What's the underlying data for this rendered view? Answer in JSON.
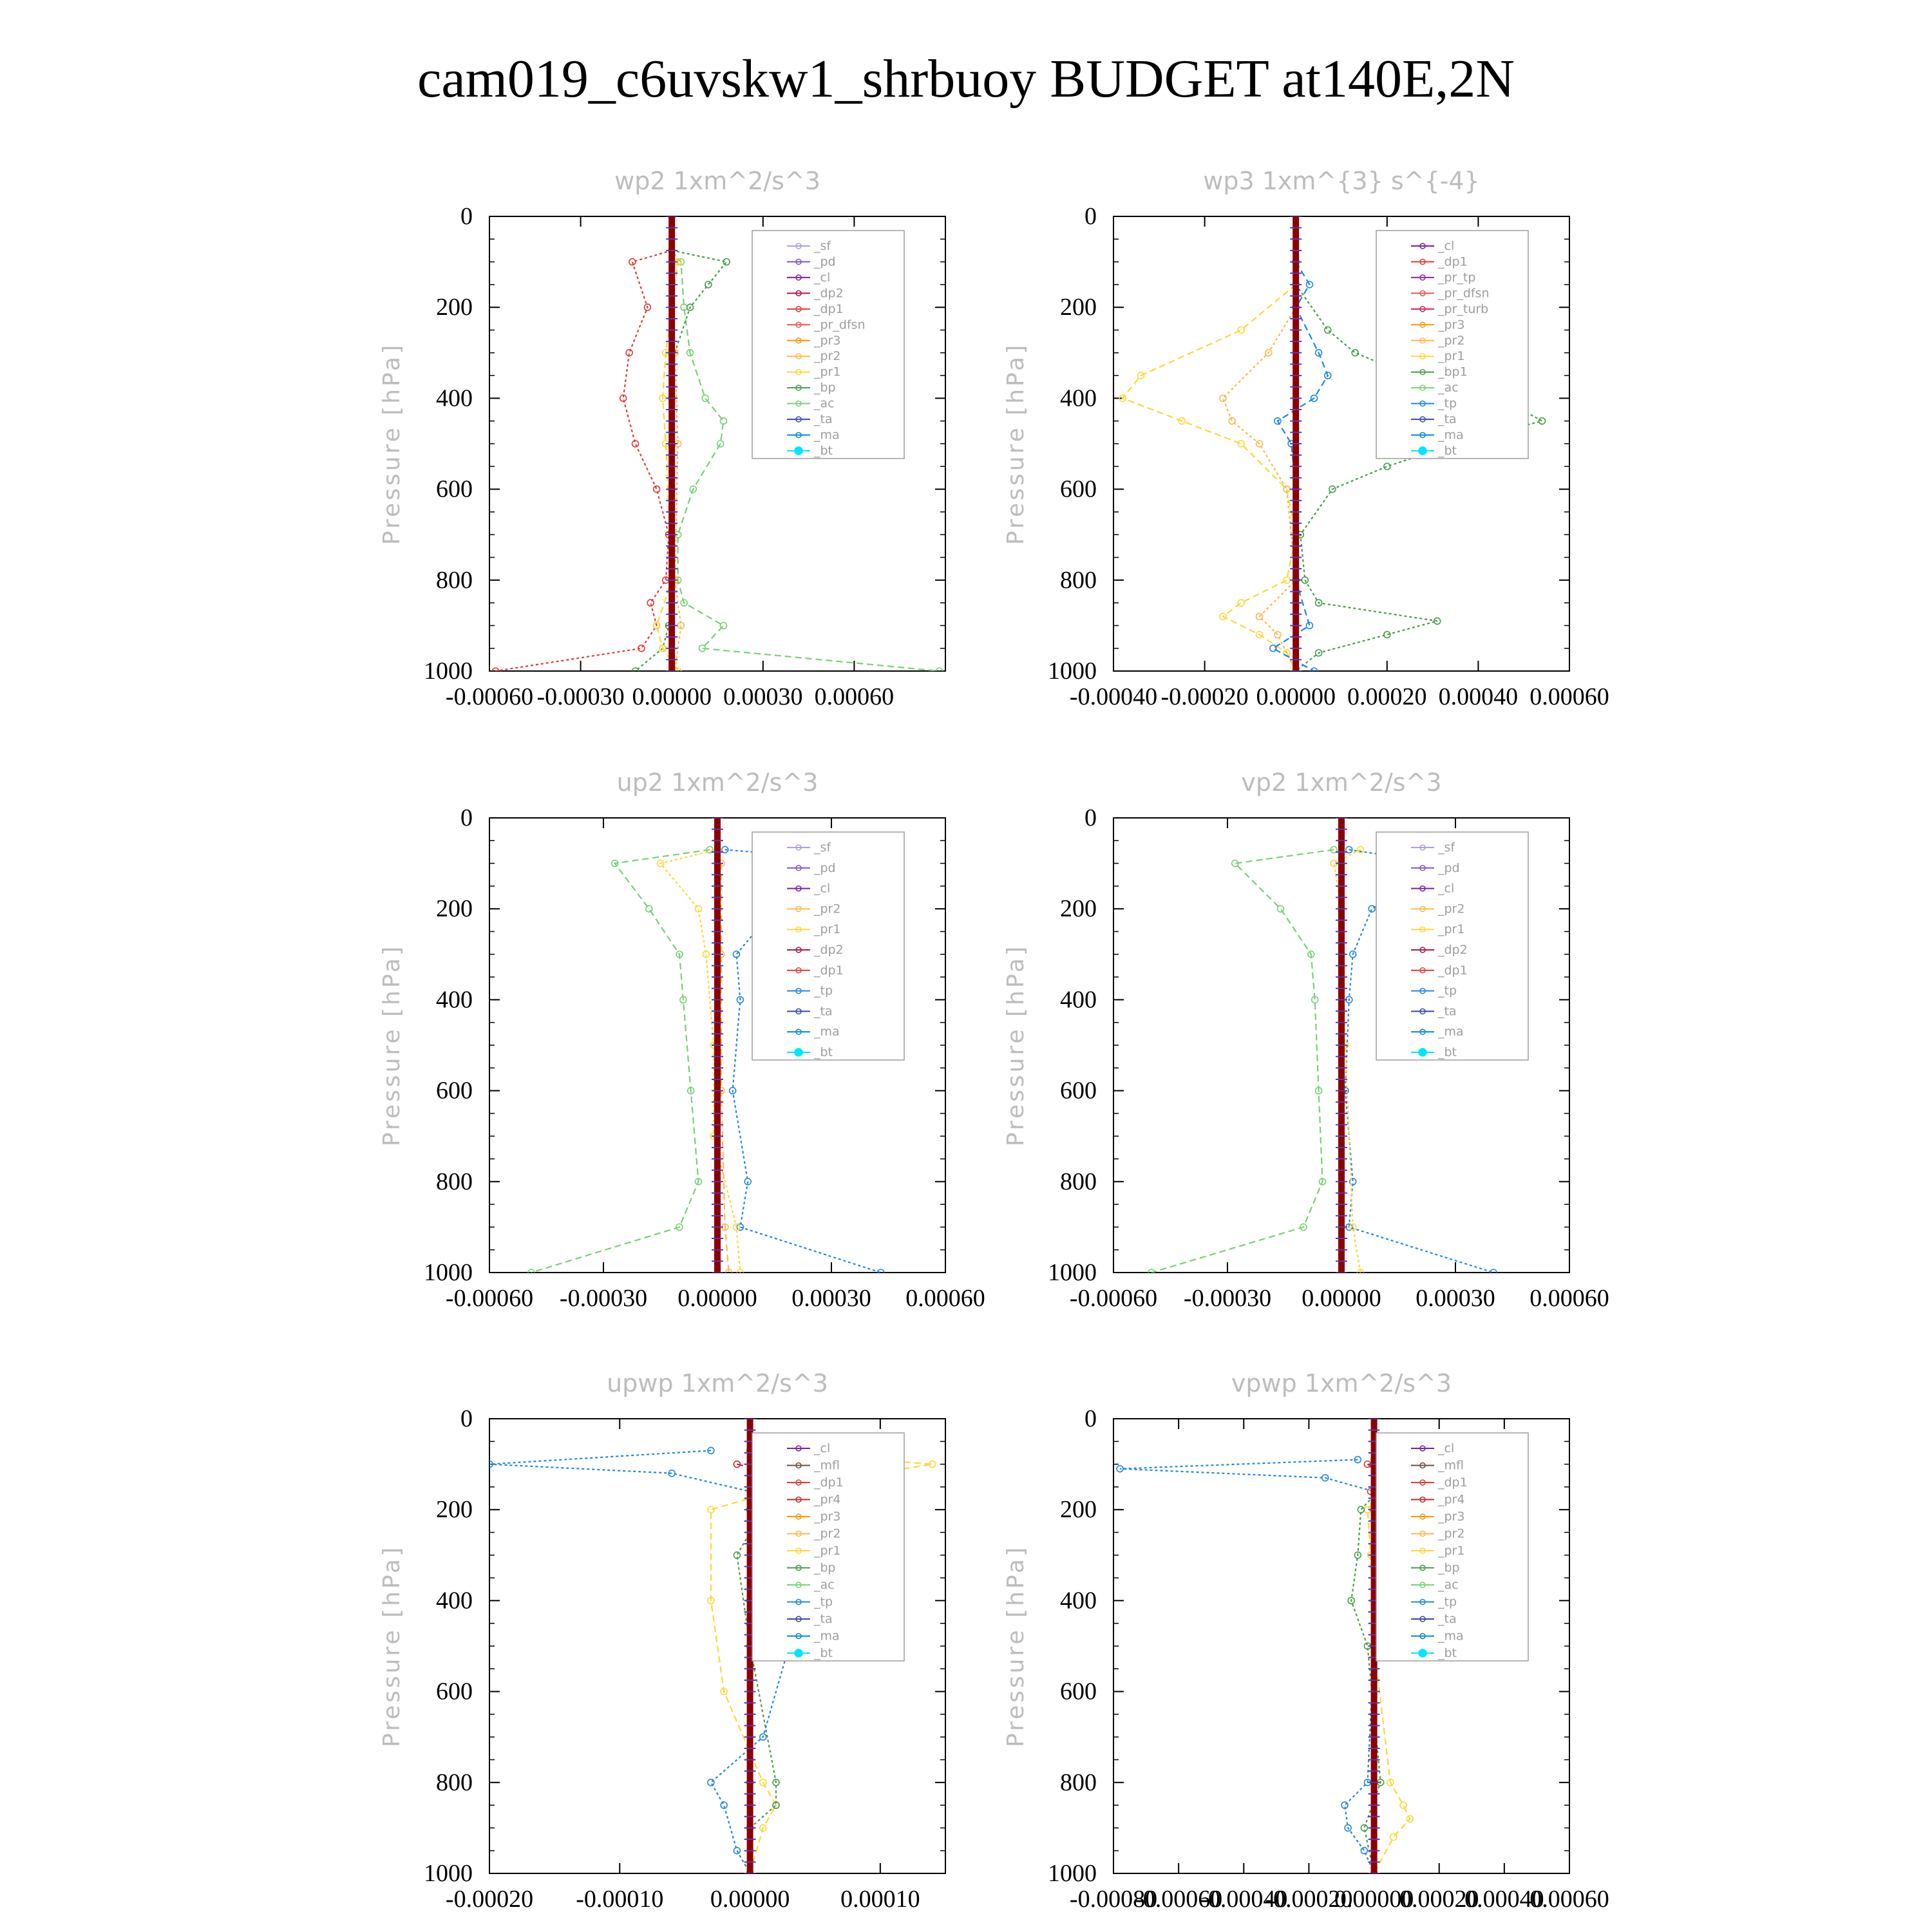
{
  "figure": {
    "title": "cam019_c6uvskw1_shrbuoy  BUDGET at140E,2N",
    "ylabel": "Pressure [hPa]"
  },
  "colors": {
    "_sf": "#b39ddb",
    "_cl": "#7b1fa2",
    "_pd": "#7e57c2",
    "_dp2": "#ad1457",
    "_dp1": "#e53935",
    "_pr_dfsn": "#ef5350",
    "_pr3": "#ff9800",
    "_pr2": "#ffb74d",
    "_pr1": "#fdd835",
    "_bp": "#43a047",
    "_ac": "#76d275",
    "_tp": "#1e88e5",
    "_ta": "#3949ab",
    "_ma": "#0288d1",
    "_bt": "#00e5ff",
    "_pr_tp": "#8e24aa",
    "_pr_turb": "#d81b60",
    "_mfl": "#6d4c41",
    "_pr4": "#c62828"
  },
  "chart_data": [
    {
      "type": "line",
      "title": "wp2  1xm^2/s^3",
      "xlim": [
        -0.0006,
        0.0009
      ],
      "ylim": [
        1000,
        0
      ],
      "xticks": [
        "-0.00060",
        "-0.00030",
        "0.00000",
        "0.00030",
        "0.00060"
      ],
      "xtick_values": [
        -0.0006,
        -0.0003,
        0,
        0.0003,
        0.0006
      ],
      "yticks": [
        "0",
        "200",
        "400",
        "600",
        "800",
        "1000"
      ],
      "legend": [
        "_sf",
        "_pd",
        "_cl",
        "_dp2",
        "_dp1",
        "_pr_dfsn",
        "_pr3",
        "_pr2",
        "_pr1",
        "_bp",
        "_ac",
        "_ta",
        "_ma",
        "_bt"
      ],
      "series": [
        {
          "name": "_dp1",
          "color": "#e53935",
          "y": [
            75,
            100,
            200,
            300,
            400,
            500,
            600,
            700,
            800,
            850,
            900,
            950,
            1000
          ],
          "x": [
            0,
            -0.00013,
            -8e-05,
            -0.00014,
            -0.00016,
            -0.00012,
            -5e-05,
            -1e-05,
            -2e-05,
            -7e-05,
            -5e-05,
            -0.0001,
            -0.00058
          ]
        },
        {
          "name": "_ac",
          "color": "#76d275",
          "y": [
            75,
            100,
            200,
            300,
            400,
            450,
            500,
            600,
            700,
            800,
            850,
            900,
            950,
            1000
          ],
          "x": [
            0,
            3e-05,
            4e-05,
            6e-05,
            0.00011,
            0.00017,
            0.00016,
            7e-05,
            2e-05,
            2e-05,
            4e-05,
            0.00017,
            0.0001,
            0.00088
          ]
        },
        {
          "name": "_bp",
          "color": "#43a047",
          "y": [
            75,
            100,
            150,
            200,
            300,
            400,
            600,
            800,
            900,
            950,
            1000
          ],
          "x": [
            0,
            0.00018,
            0.00012,
            6e-05,
            1e-05,
            0,
            0,
            1e-05,
            -1e-05,
            -3e-05,
            -0.00012
          ]
        },
        {
          "name": "_pr1",
          "color": "#fdd835",
          "y": [
            75,
            100,
            300,
            400,
            500,
            800,
            900,
            950,
            1000
          ],
          "x": [
            0,
            2e-05,
            -2e-05,
            -3e-05,
            -2e-05,
            0,
            -5e-05,
            -3e-05,
            2e-05
          ]
        },
        {
          "name": "_pr2",
          "color": "#ffb74d",
          "y": [
            75,
            300,
            500,
            800,
            900,
            1000
          ],
          "x": [
            0,
            1e-05,
            2e-05,
            1e-05,
            3e-05,
            1e-05
          ]
        },
        {
          "name": "_pd",
          "color": "#7e57c2",
          "y": [
            0,
            500,
            1000
          ],
          "x": [
            0,
            0,
            0
          ]
        },
        {
          "name": "_bt",
          "color": "#8b0000",
          "y": [
            0,
            500,
            1000
          ],
          "x": [
            0,
            0,
            0
          ]
        }
      ]
    },
    {
      "type": "line",
      "title": "wp3  1xm^{3} s^{-4}",
      "xlim": [
        -0.0004,
        0.0006
      ],
      "ylim": [
        1000,
        0
      ],
      "xticks": [
        "-0.00040",
        "-0.00020",
        "0.00000",
        "0.00020",
        "0.00040",
        "0.00060"
      ],
      "xtick_values": [
        -0.0004,
        -0.0002,
        0,
        0.0002,
        0.0004,
        0.0006
      ],
      "yticks": [
        "0",
        "200",
        "400",
        "600",
        "800",
        "1000"
      ],
      "legend": [
        "_cl",
        "_dp1",
        "_pr_tp",
        "_pr_dfsn",
        "_pr_turb",
        "_pr3",
        "_pr2",
        "_pr1",
        "_bp1",
        "_ac",
        "_tp",
        "_ta",
        "_ma",
        "_bt"
      ],
      "series": [
        {
          "name": "_ac",
          "color": "#43a047",
          "y": [
            150,
            250,
            300,
            350,
            400,
            450,
            500,
            550,
            600,
            700,
            800,
            850,
            890,
            920,
            960,
            1000
          ],
          "x": [
            0,
            7e-05,
            0.00013,
            0.00025,
            0.00045,
            0.00054,
            0.00035,
            0.0002,
            8e-05,
            1e-05,
            2e-05,
            5e-05,
            0.00031,
            0.0002,
            5e-05,
            0
          ]
        },
        {
          "name": "_pr1",
          "color": "#fdd835",
          "y": [
            150,
            250,
            350,
            400,
            450,
            500,
            600,
            700,
            800,
            850,
            880,
            920,
            960,
            1000
          ],
          "x": [
            0,
            -0.00012,
            -0.00034,
            -0.00038,
            -0.00025,
            -0.00012,
            -2e-05,
            0,
            -2e-05,
            -0.00012,
            -0.00016,
            -8e-05,
            -2e-05,
            0
          ]
        },
        {
          "name": "_pr2",
          "color": "#ffb74d",
          "y": [
            200,
            300,
            400,
            450,
            500,
            600,
            800,
            880,
            920,
            1000
          ],
          "x": [
            0,
            -6e-05,
            -0.00016,
            -0.00014,
            -8e-05,
            -2e-05,
            0,
            -8e-05,
            -4e-05,
            0
          ]
        },
        {
          "name": "_tp",
          "color": "#1e88e5",
          "y": [
            100,
            150,
            200,
            300,
            350,
            400,
            450,
            500,
            600,
            800,
            900,
            950,
            1000
          ],
          "x": [
            0,
            3e-05,
            0,
            5e-05,
            7e-05,
            4e-05,
            -4e-05,
            -1e-05,
            0,
            0,
            3e-05,
            -5e-05,
            4e-05
          ]
        },
        {
          "name": "_bt",
          "color": "#8b0000",
          "y": [
            0,
            500,
            1000
          ],
          "x": [
            0,
            0,
            0
          ]
        }
      ]
    },
    {
      "type": "line",
      "title": "up2  1xm^2/s^3",
      "xlim": [
        -0.0006,
        0.0006
      ],
      "ylim": [
        1000,
        0
      ],
      "xticks": [
        "-0.00060",
        "-0.00030",
        "0.00000",
        "0.00030",
        "0.00060"
      ],
      "xtick_values": [
        -0.0006,
        -0.0003,
        0,
        0.0003,
        0.0006
      ],
      "yticks": [
        "0",
        "200",
        "400",
        "600",
        "800",
        "1000"
      ],
      "legend": [
        "_sf",
        "_pd",
        "_cl",
        "_pr2",
        "_pr1",
        "_dp2",
        "_dp1",
        "_tp",
        "_ta",
        "_ma",
        "_bt"
      ],
      "series": [
        {
          "name": "_tp",
          "color": "#1e88e5",
          "y": [
            70,
            100,
            200,
            300,
            400,
            600,
            800,
            900,
            1000
          ],
          "x": [
            2e-05,
            0.00046,
            0.00015,
            5e-05,
            6e-05,
            4e-05,
            8e-05,
            6e-05,
            0.00043
          ]
        },
        {
          "name": "_dp1",
          "color": "#76d275",
          "y": [
            70,
            100,
            200,
            300,
            400,
            600,
            800,
            900,
            1000
          ],
          "x": [
            -2e-05,
            -0.00027,
            -0.00018,
            -0.0001,
            -9e-05,
            -7e-05,
            -5e-05,
            -0.0001,
            -0.00049
          ]
        },
        {
          "name": "_pr1",
          "color": "#fdd835",
          "y": [
            70,
            100,
            200,
            300,
            500,
            700,
            900,
            1000
          ],
          "x": [
            0,
            -0.00015,
            -5e-05,
            -3e-05,
            -1e-05,
            -1e-05,
            5e-05,
            6e-05
          ]
        },
        {
          "name": "_pr2",
          "color": "#ffb74d",
          "y": [
            100,
            300,
            600,
            900,
            1000
          ],
          "x": [
            1e-05,
            1e-05,
            1e-05,
            2e-05,
            3e-05
          ]
        },
        {
          "name": "_bt",
          "color": "#8b0000",
          "y": [
            0,
            500,
            1000
          ],
          "x": [
            0,
            0,
            0
          ]
        }
      ]
    },
    {
      "type": "line",
      "title": "vp2  1xm^2/s^3",
      "xlim": [
        -0.0006,
        0.0006
      ],
      "ylim": [
        1000,
        0
      ],
      "xticks": [
        "-0.00060",
        "-0.00030",
        "0.00000",
        "0.00030",
        "0.00060"
      ],
      "xtick_values": [
        -0.0006,
        -0.0003,
        0,
        0.0003,
        0.0006
      ],
      "yticks": [
        "0",
        "200",
        "400",
        "600",
        "800",
        "1000"
      ],
      "legend": [
        "_sf",
        "_pd",
        "_cl",
        "_pr2",
        "_pr1",
        "_dp2",
        "_dp1",
        "_tp",
        "_ta",
        "_ma",
        "_bt"
      ],
      "series": [
        {
          "name": "_tp",
          "color": "#1e88e5",
          "y": [
            70,
            100,
            200,
            300,
            400,
            600,
            800,
            900,
            1000
          ],
          "x": [
            2e-05,
            0.00026,
            8e-05,
            3e-05,
            2e-05,
            1e-05,
            3e-05,
            2e-05,
            0.0004
          ]
        },
        {
          "name": "_dp1",
          "color": "#76d275",
          "y": [
            70,
            100,
            200,
            300,
            400,
            600,
            800,
            900,
            1000
          ],
          "x": [
            -2e-05,
            -0.00028,
            -0.00016,
            -8e-05,
            -7e-05,
            -6e-05,
            -5e-05,
            -0.0001,
            -0.0005
          ]
        },
        {
          "name": "_pr1",
          "color": "#fdd835",
          "y": [
            70,
            100,
            200,
            500,
            900,
            1000
          ],
          "x": [
            5e-05,
            -2e-05,
            0,
            1e-05,
            3e-05,
            5e-05
          ]
        },
        {
          "name": "_bt",
          "color": "#8b0000",
          "y": [
            0,
            500,
            1000
          ],
          "x": [
            0,
            0,
            0
          ]
        }
      ]
    },
    {
      "type": "line",
      "title": "upwp  1xm^2/s^3",
      "xlim": [
        -0.0002,
        0.00015
      ],
      "ylim": [
        1000,
        0
      ],
      "xticks": [
        "-0.00020",
        "-0.00010",
        "0.00000",
        "0.00010"
      ],
      "xtick_values": [
        -0.0002,
        -0.0001,
        0,
        0.0001
      ],
      "yticks": [
        "0",
        "200",
        "400",
        "600",
        "800",
        "1000"
      ],
      "legend": [
        "_cl",
        "_mfl",
        "_dp1",
        "_pr4",
        "_pr3",
        "_pr2",
        "_pr1",
        "_bp",
        "_ac",
        "_tp",
        "_ta",
        "_ma",
        "_bt"
      ],
      "series": [
        {
          "name": "_tp",
          "color": "#1e88e5",
          "y": [
            70,
            100,
            120,
            200,
            300,
            500,
            700,
            800,
            850,
            950,
            1000
          ],
          "x": [
            -3e-05,
            -0.0002,
            -6e-05,
            6e-05,
            3e-05,
            3e-05,
            1e-05,
            -3e-05,
            -2e-05,
            -1e-05,
            0
          ]
        },
        {
          "name": "_pr1",
          "color": "#fdd835",
          "y": [
            70,
            100,
            150,
            200,
            400,
            600,
            800,
            850,
            900,
            1000
          ],
          "x": [
            0,
            0.00014,
            3e-05,
            -3e-05,
            -3e-05,
            -2e-05,
            1e-05,
            2e-05,
            1e-05,
            0
          ]
        },
        {
          "name": "_bp",
          "color": "#43a047",
          "y": [
            70,
            120,
            200,
            300,
            500,
            800,
            850,
            900,
            1000
          ],
          "x": [
            0,
            3e-05,
            1e-05,
            -1e-05,
            0,
            2e-05,
            2e-05,
            0,
            0
          ]
        },
        {
          "name": "_pr4",
          "color": "#c62828",
          "y": [
            100,
            120,
            200,
            400,
            800,
            1000
          ],
          "x": [
            -1e-05,
            2e-05,
            0,
            0,
            0,
            0
          ]
        },
        {
          "name": "_bt",
          "color": "#8b0000",
          "y": [
            0,
            500,
            1000
          ],
          "x": [
            0,
            0,
            0
          ]
        }
      ]
    },
    {
      "type": "line",
      "title": "vpwp  1xm^2/s^3",
      "xlim": [
        -0.0008,
        0.0006
      ],
      "ylim": [
        1000,
        0
      ],
      "xticks": [
        "-0.00080",
        "-0.00060",
        "-0.00040",
        "-0.00020",
        "0.00000",
        "0.00020",
        "0.00040",
        "0.00060"
      ],
      "xtick_values": [
        -0.0008,
        -0.0006,
        -0.0004,
        -0.0002,
        0,
        0.0002,
        0.0004,
        0.0006
      ],
      "yticks": [
        "0",
        "200",
        "400",
        "600",
        "800",
        "1000"
      ],
      "legend": [
        "_cl",
        "_mfl",
        "_dp1",
        "_pr4",
        "_pr3",
        "_pr2",
        "_pr1",
        "_bp",
        "_ac",
        "_tp",
        "_ta",
        "_ma",
        "_bt"
      ],
      "series": [
        {
          "name": "_tp",
          "color": "#1e88e5",
          "y": [
            90,
            110,
            130,
            170,
            200,
            250,
            300,
            500,
            800,
            850,
            900,
            950,
            1000
          ],
          "x": [
            -5e-05,
            -0.00078,
            -0.00015,
            5e-05,
            0.00012,
            6e-05,
            2e-05,
            0,
            -2e-05,
            -9e-05,
            -8e-05,
            -3e-05,
            0
          ]
        },
        {
          "name": "_pr1",
          "color": "#fdd835",
          "y": [
            90,
            110,
            150,
            200,
            300,
            500,
            800,
            850,
            880,
            920,
            1000
          ],
          "x": [
            0,
            0.0002,
            3e-05,
            -2e-05,
            -1e-05,
            0,
            5e-05,
            9e-05,
            0.00011,
            6e-05,
            0
          ]
        },
        {
          "name": "_bp",
          "color": "#43a047",
          "y": [
            100,
            130,
            200,
            300,
            400,
            500,
            800,
            900,
            1000
          ],
          "x": [
            0,
            5e-05,
            -4e-05,
            -5e-05,
            -7e-05,
            -2e-05,
            2e-05,
            -3e-05,
            0
          ]
        },
        {
          "name": "_dp1",
          "color": "#e53935",
          "y": [
            100,
            130,
            160,
            200,
            400,
            1000
          ],
          "x": [
            -2e-05,
            3e-05,
            -1e-05,
            0,
            0,
            0
          ]
        },
        {
          "name": "_bt",
          "color": "#8b0000",
          "y": [
            0,
            500,
            1000
          ],
          "x": [
            0,
            0,
            0
          ]
        }
      ]
    }
  ]
}
